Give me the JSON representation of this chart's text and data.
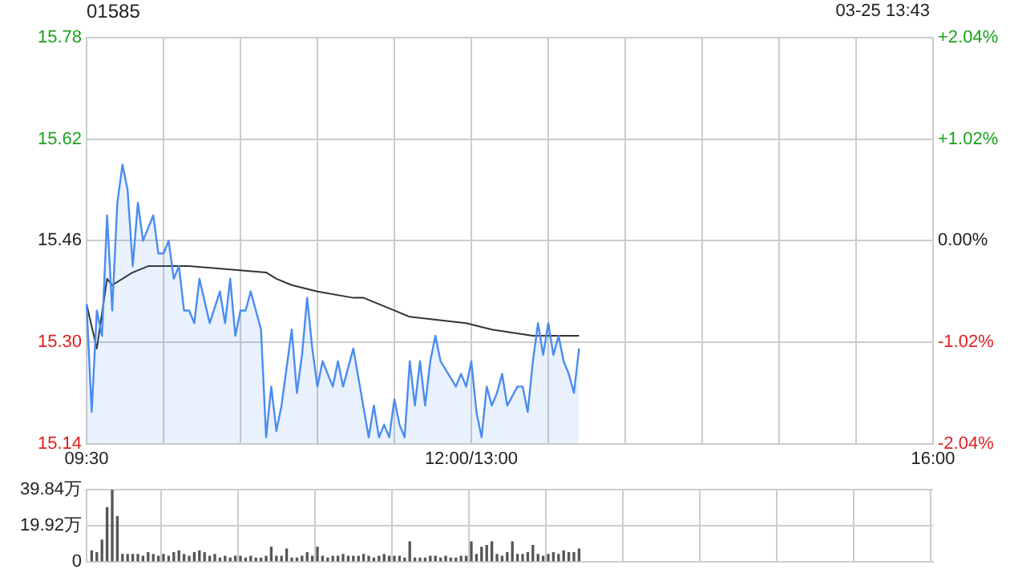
{
  "chart_data": [
    {
      "type": "line",
      "title": "01585",
      "annotations": [
        "03-25 13:43"
      ],
      "categories": [
        "09:30",
        null,
        null,
        null,
        null,
        null,
        null,
        null,
        null,
        null,
        null,
        null,
        null,
        null,
        null,
        null,
        null,
        null,
        null,
        null,
        null,
        null,
        null,
        null,
        null,
        null,
        null,
        null,
        null,
        null,
        null,
        null,
        null,
        null,
        null,
        null,
        null,
        null,
        null,
        null,
        null,
        null,
        null,
        null,
        null,
        null,
        null,
        null,
        null,
        null,
        null,
        null,
        null,
        null,
        null,
        null,
        null,
        null,
        null,
        null,
        null,
        null,
        null,
        null,
        null,
        null,
        null,
        null,
        null,
        null,
        null,
        null,
        null,
        null,
        null,
        "12:00/13:00",
        null,
        null,
        null,
        null,
        null,
        null,
        null,
        null,
        null,
        null,
        null,
        null,
        null,
        null,
        null,
        null,
        null,
        null,
        null,
        null,
        null,
        null,
        null,
        null,
        null,
        null,
        null,
        null,
        null,
        null,
        null,
        null,
        null,
        null,
        null,
        null,
        null,
        null,
        null,
        null,
        null,
        null,
        null,
        null,
        null,
        null,
        null,
        null,
        null,
        null,
        null,
        null,
        null,
        null,
        null,
        null,
        null,
        null,
        null,
        null,
        null,
        null,
        null,
        null,
        null,
        null,
        null,
        null,
        null,
        null,
        null,
        null,
        null,
        null,
        null,
        null,
        null,
        null,
        null,
        null,
        null,
        null,
        null,
        null,
        null,
        null,
        null,
        null,
        null,
        "16:00"
      ],
      "ylim": [
        15.14,
        15.78
      ],
      "yticks": [
        {
          "value": 15.14,
          "label": "15.14"
        },
        {
          "value": 15.3,
          "label": "15.30"
        },
        {
          "value": 15.46,
          "label": "15.46"
        },
        {
          "value": 15.62,
          "label": "15.62"
        },
        {
          "value": 15.78,
          "label": "15.78"
        }
      ],
      "y2lim": [
        -2.04,
        2.04
      ],
      "y2ticks": [
        {
          "value": -2.04,
          "label": "-2.04%"
        },
        {
          "value": -1.02,
          "label": "-1.02%"
        },
        {
          "value": 0,
          "label": "0.00%"
        },
        {
          "value": 1.02,
          "label": "+1.02%"
        },
        {
          "value": 2.04,
          "label": "+2.04%"
        }
      ],
      "grid": true,
      "series": [
        {
          "type": "area",
          "color": "#4a8cf0",
          "values": [
            15.36,
            15.19,
            15.35,
            15.31,
            15.5,
            15.35,
            15.52,
            15.58,
            15.54,
            15.42,
            15.52,
            15.46,
            null,
            15.5,
            15.44,
            15.44,
            15.46,
            15.4,
            15.42,
            15.35,
            15.35,
            15.33,
            15.4,
            null,
            15.33,
            null,
            15.38,
            15.33,
            15.4,
            15.31,
            15.35,
            15.35,
            15.38,
            null,
            15.32,
            15.15,
            15.23,
            15.16,
            15.2,
            null,
            15.32,
            15.22,
            15.28,
            15.37,
            15.29,
            15.23,
            15.27,
            null,
            15.23,
            15.27,
            15.23,
            null,
            15.29,
            null,
            null,
            15.15,
            15.2,
            15.15,
            15.17,
            15.15,
            15.21,
            15.17,
            15.15,
            15.27,
            15.2,
            15.27,
            15.2,
            15.27,
            15.31,
            15.27,
            null,
            null,
            15.23,
            15.25,
            15.23,
            15.27,
            15.19,
            15.15,
            15.23,
            15.2,
            15.22,
            15.25,
            15.2,
            null,
            15.23,
            15.23,
            15.19,
            15.27,
            15.33,
            15.28,
            15.33,
            15.28,
            15.31,
            15.27,
            15.25,
            15.22,
            15.29,
            null,
            null,
            null,
            null,
            null,
            null,
            null,
            null,
            null,
            null,
            null,
            null,
            null,
            null,
            null,
            null,
            null,
            null,
            null,
            null,
            null,
            null,
            null,
            null,
            null,
            null,
            null,
            null,
            null,
            null,
            null,
            null,
            null,
            null,
            null,
            null,
            null,
            null,
            null,
            null,
            null,
            null,
            null,
            null,
            null,
            null,
            null,
            null,
            null,
            null,
            null,
            null,
            null,
            null,
            null,
            null,
            null,
            null,
            null,
            null,
            null,
            null,
            null,
            null,
            null,
            null,
            null,
            null,
            null
          ]
        },
        {
          "type": "line",
          "color": "#333333",
          "values": [
            15.36,
            null,
            15.29,
            null,
            15.4,
            15.39,
            null,
            null,
            null,
            15.41,
            null,
            null,
            15.42,
            null,
            null,
            null,
            null,
            15.42,
            null,
            null,
            15.42,
            null,
            null,
            null,
            null,
            null,
            null,
            null,
            null,
            null,
            null,
            null,
            null,
            null,
            null,
            15.41,
            null,
            15.4,
            null,
            null,
            15.39,
            null,
            null,
            null,
            null,
            15.38,
            null,
            null,
            null,
            null,
            null,
            null,
            15.37,
            null,
            15.37,
            null,
            null,
            null,
            null,
            null,
            15.35,
            null,
            null,
            15.34,
            null,
            null,
            null,
            null,
            null,
            null,
            null,
            null,
            null,
            null,
            15.33,
            null,
            null,
            null,
            null,
            15.32,
            null,
            null,
            null,
            null,
            null,
            null,
            null,
            15.31,
            null,
            null,
            null,
            null,
            null,
            null,
            null,
            null,
            15.31,
            null,
            null,
            null,
            null,
            null,
            null,
            null,
            null,
            null,
            null,
            null,
            null,
            null,
            null,
            null,
            null,
            null,
            null,
            null,
            null,
            null,
            null,
            null,
            null,
            null,
            null,
            null,
            null,
            null,
            null,
            null,
            null,
            null,
            null,
            null,
            null,
            null,
            null,
            null,
            null,
            null,
            null,
            null,
            null,
            null,
            null,
            null,
            null,
            null,
            null,
            null,
            null,
            null,
            null,
            null,
            null,
            null,
            null,
            null,
            null,
            null,
            null,
            null,
            null,
            null,
            null,
            null,
            null,
            null
          ]
        }
      ]
    },
    {
      "type": "bar",
      "categories": [
        null,
        null,
        null,
        null,
        null,
        null,
        null,
        null,
        null,
        null,
        null,
        null,
        null,
        null,
        null,
        null,
        null,
        null,
        null,
        null,
        null,
        null,
        null,
        null,
        null,
        null,
        null,
        null,
        null,
        null,
        null,
        null,
        null,
        null,
        null,
        null,
        null,
        null,
        null,
        null,
        null,
        null,
        null,
        null,
        null,
        null,
        null,
        null,
        null,
        null,
        null,
        null,
        null,
        null,
        null,
        null,
        null,
        null,
        null,
        null,
        null,
        null,
        null,
        null,
        null,
        null,
        null,
        null,
        null,
        null,
        null,
        null,
        null,
        null,
        null,
        null,
        null,
        null,
        null,
        null,
        null,
        null,
        null,
        null,
        null,
        null,
        null,
        null,
        null,
        null,
        null,
        null,
        null,
        null,
        null,
        null,
        null,
        null,
        null,
        null,
        null,
        null,
        null,
        null,
        null,
        null,
        null,
        null,
        null,
        null,
        null,
        null,
        null,
        null,
        null,
        null,
        null,
        null,
        null,
        null,
        null,
        null,
        null,
        null,
        null,
        null,
        null,
        null,
        null,
        null,
        null,
        null,
        null,
        null,
        null,
        null,
        null,
        null,
        null,
        null,
        null,
        null,
        null,
        null,
        null,
        null,
        null,
        null,
        null,
        null,
        null,
        null,
        null,
        null,
        null,
        null,
        null,
        null,
        null,
        null,
        null,
        null,
        null,
        null,
        null,
        null
      ],
      "ylim": [
        0,
        39.84
      ],
      "yticks": [
        0,
        {
          "value": 19.92,
          "label": "19.92万"
        },
        {
          "value": 39.84,
          "label": "39.84万"
        }
      ],
      "tick_labels": "y",
      "grid": true,
      "series": [
        {
          "type": "bar",
          "color": "#555555",
          "values": [
            null,
            6,
            5,
            12,
            30,
            39.84,
            25,
            4,
            4,
            4,
            4,
            3,
            5,
            4,
            3,
            4,
            3,
            5,
            6,
            4,
            3,
            5,
            6,
            5,
            3,
            4,
            2,
            3,
            2,
            3,
            3,
            2,
            3,
            2,
            2,
            3,
            8,
            3,
            3,
            7,
            2,
            2,
            3,
            5,
            3,
            8,
            3,
            2,
            3,
            3,
            4,
            3,
            3,
            3,
            4,
            3,
            2,
            3,
            4,
            3,
            3,
            3,
            2,
            11,
            2,
            2,
            2,
            3,
            3,
            2,
            3,
            2,
            2,
            3,
            3,
            11,
            4,
            8,
            9,
            11,
            4,
            3,
            5,
            11,
            4,
            4,
            5,
            9,
            4,
            3,
            4,
            5,
            4,
            6,
            5,
            5,
            7,
            null,
            null,
            null,
            null,
            null,
            null,
            null,
            null,
            null,
            null,
            null,
            null,
            null,
            null,
            null,
            null,
            null,
            null,
            null,
            null,
            null,
            null,
            null,
            null,
            null,
            null,
            null,
            null,
            null,
            null,
            null,
            null,
            null,
            null,
            null,
            null,
            null,
            null,
            null,
            null,
            null,
            null,
            null,
            null,
            null,
            null,
            null,
            null,
            null,
            null,
            null,
            null,
            null,
            null,
            null,
            null,
            null,
            null,
            null,
            null,
            null,
            null,
            null,
            null,
            null,
            null,
            null,
            null,
            null
          ]
        }
      ]
    }
  ]
}
